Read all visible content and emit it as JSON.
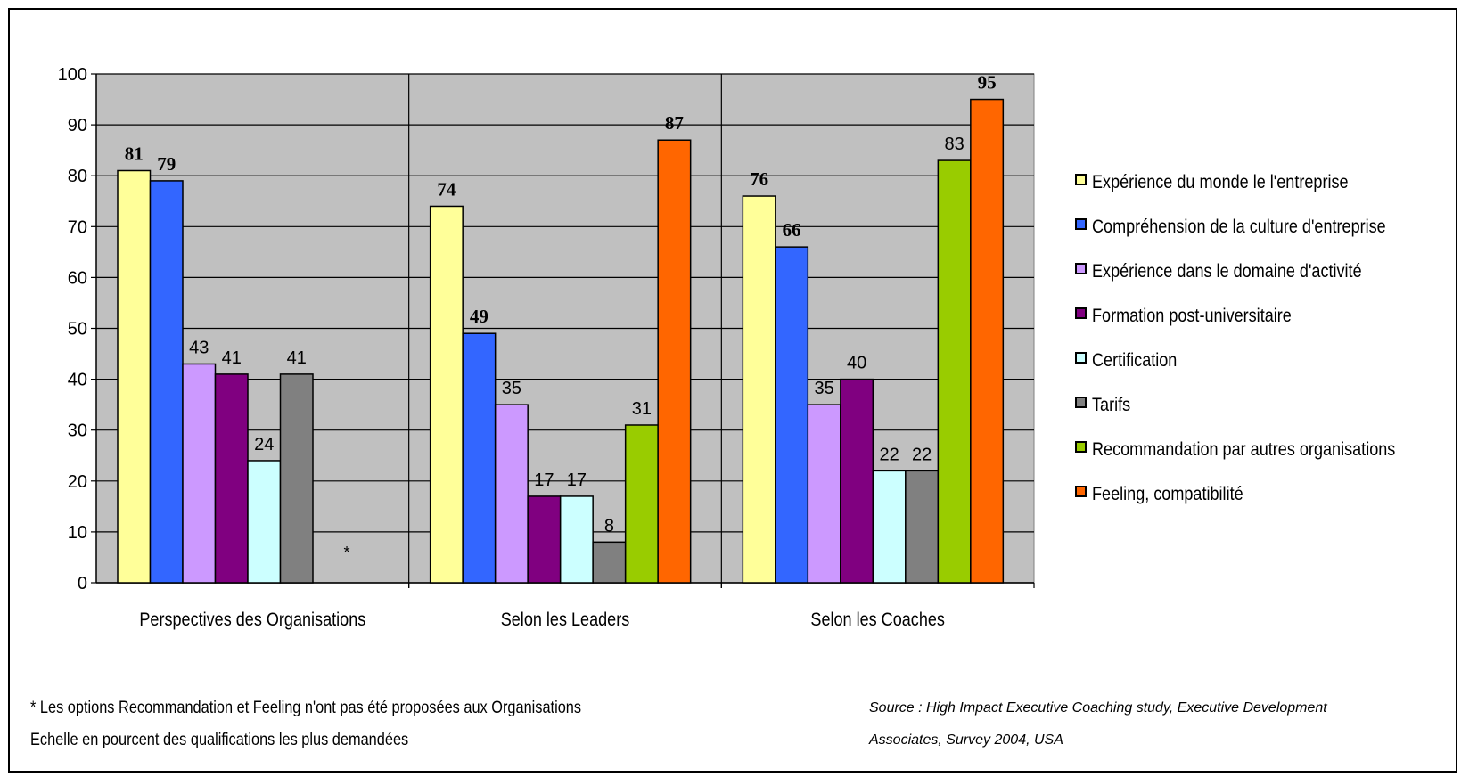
{
  "chart_data": {
    "type": "bar",
    "categories": [
      "Perspectives des Organisations",
      "Selon les Leaders",
      "Selon les Coaches"
    ],
    "series": [
      {
        "name": "Expérience du monde le l'entreprise",
        "color": "#ffff99",
        "values": [
          81,
          74,
          76
        ]
      },
      {
        "name": "Compréhension de la culture d'entreprise",
        "color": "#3366ff",
        "values": [
          79,
          49,
          66
        ]
      },
      {
        "name": "Expérience dans le domaine d'activité",
        "color": "#cc99ff",
        "values": [
          43,
          35,
          35
        ]
      },
      {
        "name": "Formation post-universitaire",
        "color": "#800080",
        "values": [
          41,
          17,
          40
        ]
      },
      {
        "name": "Certification",
        "color": "#ccffff",
        "values": [
          24,
          17,
          22
        ]
      },
      {
        "name": "Tarifs",
        "color": "#808080",
        "values": [
          41,
          8,
          22
        ]
      },
      {
        "name": "Recommandation par autres organisations",
        "color": "#99cc00",
        "values": [
          null,
          31,
          83
        ]
      },
      {
        "name": "Feeling, compatibilité",
        "color": "#ff6600",
        "values": [
          null,
          87,
          95
        ]
      }
    ],
    "data_labels": [
      [
        "81",
        "79",
        "43",
        "41",
        "24",
        "41",
        null,
        null
      ],
      [
        "74",
        "49",
        "35",
        "17",
        "17",
        "8",
        "31",
        "87"
      ],
      [
        "76",
        "66",
        "35",
        "40",
        "22",
        "22",
        "83",
        "95"
      ]
    ],
    "bold_labels": [
      [
        true,
        true,
        false,
        false,
        false,
        false,
        false,
        false
      ],
      [
        true,
        true,
        false,
        false,
        false,
        false,
        false,
        true
      ],
      [
        true,
        true,
        false,
        false,
        false,
        false,
        false,
        true
      ]
    ],
    "asterisk_mark": "*",
    "yticks": [
      "0",
      "10",
      "20",
      "30",
      "40",
      "50",
      "60",
      "70",
      "80",
      "90",
      "100"
    ],
    "ylim": [
      0,
      100
    ],
    "grid": true,
    "plot_background": "#c0c0c0",
    "legend_position": "right",
    "title": "",
    "xlabel": "",
    "ylabel": ""
  },
  "footnotes": {
    "note_line1": "* Les options Recommandation et Feeling n'ont pas été proposées aux Organisations",
    "note_line2": "Echelle en pourcent des qualifications les plus demandées",
    "source_line1": "Source : High Impact Executive Coaching study, Executive Development",
    "source_line2": "Associates, Survey 2004, USA"
  }
}
